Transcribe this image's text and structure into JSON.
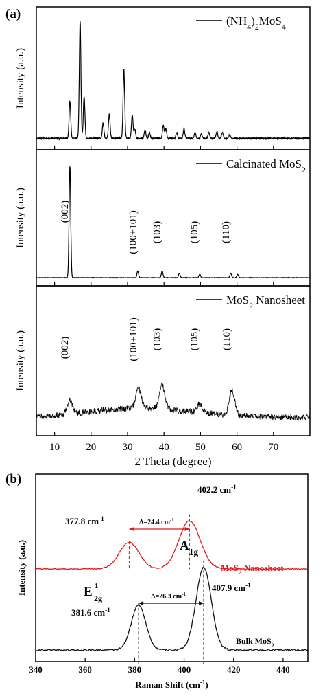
{
  "chart_data": [
    {
      "type": "line",
      "panel_label": "(a)",
      "xlabel": "2 Theta (degree)",
      "ylabel": "Intensity (a.u.)",
      "xlim": [
        5,
        80
      ],
      "xticks": [
        10,
        20,
        30,
        40,
        50,
        60,
        70
      ],
      "grid": false,
      "subplots": [
        {
          "legend": "(NH4)2MoS4",
          "legend_parts": [
            {
              "t": "(NH"
            },
            {
              "t": "4",
              "sub": true
            },
            {
              "t": ")"
            },
            {
              "t": "2",
              "sub": true
            },
            {
              "t": "MoS"
            },
            {
              "t": "4",
              "sub": true
            }
          ],
          "peak_labels": [],
          "series": [
            {
              "name": "(NH4)2MoS4",
              "peaks": [
                [
                  14.2,
                  0.32
                ],
                [
                  17.0,
                  1.0
                ],
                [
                  18.1,
                  0.36
                ],
                [
                  23.3,
                  0.13
                ],
                [
                  25.0,
                  0.21
                ],
                [
                  29.0,
                  0.59
                ],
                [
                  31.3,
                  0.2
                ],
                [
                  32.0,
                  0.08
                ],
                [
                  34.8,
                  0.07
                ],
                [
                  36.0,
                  0.05
                ],
                [
                  39.8,
                  0.11
                ],
                [
                  40.5,
                  0.08
                ],
                [
                  43.5,
                  0.05
                ],
                [
                  45.5,
                  0.08
                ],
                [
                  48.5,
                  0.05
                ],
                [
                  50.2,
                  0.04
                ],
                [
                  52.3,
                  0.05
                ],
                [
                  54.5,
                  0.06
                ],
                [
                  56.0,
                  0.05
                ],
                [
                  58.0,
                  0.03
                ]
              ],
              "noise": 0.012
            }
          ]
        },
        {
          "legend": "Calcinated MoS2",
          "legend_parts": [
            {
              "t": "Calcinated MoS"
            },
            {
              "t": "2",
              "sub": true
            }
          ],
          "peak_labels": [
            {
              "x": 14.2,
              "text": "(002)"
            },
            {
              "x": 32.9,
              "text": "(100+101)"
            },
            {
              "x": 39.5,
              "text": "(103)"
            },
            {
              "x": 49.7,
              "text": "(105)"
            },
            {
              "x": 58.4,
              "text": "(110)"
            }
          ],
          "series": [
            {
              "name": "Calcinated MoS2",
              "peaks": [
                [
                  14.2,
                  1.0
                ],
                [
                  32.8,
                  0.06
                ],
                [
                  39.5,
                  0.06
                ],
                [
                  44.2,
                  0.04
                ],
                [
                  49.8,
                  0.03
                ],
                [
                  58.3,
                  0.04
                ],
                [
                  60.2,
                  0.03
                ]
              ],
              "noise": 0.004
            }
          ]
        },
        {
          "legend": "MoS2 Nanosheet",
          "legend_parts": [
            {
              "t": "MoS"
            },
            {
              "t": "2",
              "sub": true
            },
            {
              "t": " Nanosheet"
            }
          ],
          "peak_labels": [
            {
              "x": 14.2,
              "text": "(002)"
            },
            {
              "x": 33.0,
              "text": "(100+101)"
            },
            {
              "x": 39.5,
              "text": "(103)"
            },
            {
              "x": 49.7,
              "text": "(105)"
            },
            {
              "x": 58.6,
              "text": "(110)"
            }
          ],
          "series": [
            {
              "name": "MoS2 Nanosheet",
              "peaks": [
                [
                  14.2,
                  0.22
                ],
                [
                  33.0,
                  0.32
                ],
                [
                  39.5,
                  0.38
                ],
                [
                  49.7,
                  0.14
                ],
                [
                  58.6,
                  0.4
                ]
              ],
              "noise": 0.1
            }
          ]
        }
      ]
    },
    {
      "type": "line",
      "panel_label": "(b)",
      "xlabel": "Raman Shift (cm-1)",
      "ylabel": "Intensity (a.u.)",
      "xlim": [
        340,
        450
      ],
      "xticks": [
        340,
        360,
        380,
        400,
        420,
        440
      ],
      "grid": false,
      "series": [
        {
          "name": "MoS2 Nanosheet",
          "color": "#e31a1c",
          "peaks": [
            [
              377.8,
              0.55
            ],
            [
              402.2,
              1.0
            ]
          ],
          "peak_labels": [
            "377.8 cm-1",
            "402.2 cm-1"
          ],
          "delta": "Δ=24.4 cm-1"
        },
        {
          "name": "Bulk MoS2",
          "color": "#111111",
          "peaks": [
            [
              381.6,
              0.55
            ],
            [
              407.9,
              1.0
            ]
          ],
          "peak_labels": [
            "381.6 cm-1",
            "407.9 cm-1"
          ],
          "delta": "Δ=26.3 cm-1"
        }
      ],
      "annotations": [
        "A1g",
        "E12g"
      ]
    }
  ]
}
